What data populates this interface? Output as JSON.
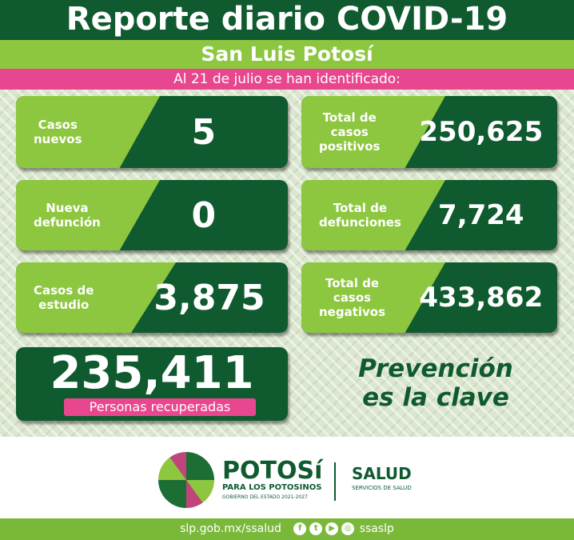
{
  "header": {
    "title": "Reporte diario COVID-19",
    "region": "San Luis Potosí",
    "date_line": "Al 21 de  julio se han identificado:"
  },
  "cards": [
    {
      "label": "Casos\nnuevos",
      "value": "5"
    },
    {
      "label": "Total de\ncasos\npositivos",
      "value": "250,625"
    },
    {
      "label": "Nueva\ndefunción",
      "value": "0"
    },
    {
      "label": "Total de\ndefunciones",
      "value": "7,724"
    },
    {
      "label": "Casos de\nestudio",
      "value": "3,875"
    },
    {
      "label": "Total de\ncasos\nnegativos",
      "value": "433,862"
    }
  ],
  "recovered": {
    "value": "235,411",
    "label": "Personas recuperadas"
  },
  "slogan": "Prevención\nes la clave",
  "logos": {
    "potosi": "POTOSí",
    "potosi_sub": "PARA LOS POTOSINOS",
    "gobierno": "GOBIERNO DEL ESTADO 2021-2027",
    "salud": "SALUD",
    "salud_sub": "SERVICIOS DE SALUD"
  },
  "footer": {
    "url": "slp.gob.mx/ssalud",
    "handle": "ssaslp",
    "social_icons": [
      "facebook-icon",
      "twitter-icon",
      "youtube-icon",
      "instagram-icon"
    ]
  },
  "colors": {
    "dark_green": "#0f5a2f",
    "light_green": "#8dc63f",
    "pink": "#e8478f"
  }
}
